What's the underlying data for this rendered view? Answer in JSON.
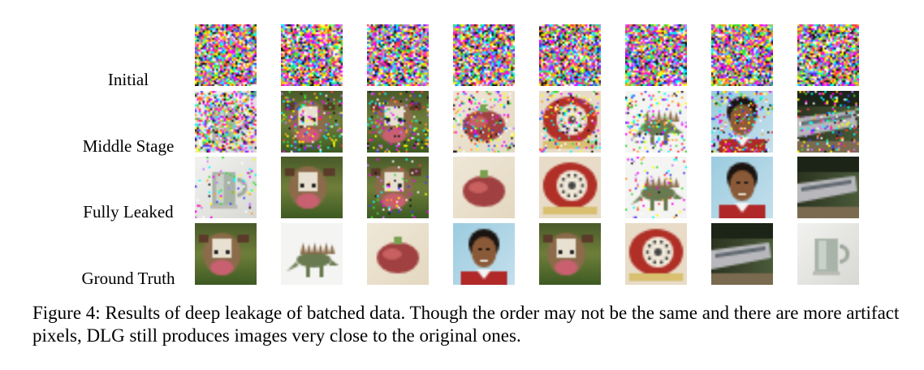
{
  "figure": {
    "rows": [
      {
        "label": "Initial",
        "images": [
          "noise",
          "noise",
          "noise",
          "noise",
          "noise",
          "noise",
          "noise",
          "noise"
        ]
      },
      {
        "label": "Middle Stage",
        "images": [
          "mug",
          "cow",
          "cow",
          "apple",
          "telephone",
          "dinosaur",
          "boy",
          "train"
        ]
      },
      {
        "label": "Fully Leaked",
        "images": [
          "mug",
          "cow",
          "cow",
          "apple",
          "telephone",
          "dinosaur",
          "boy",
          "train"
        ]
      },
      {
        "label": "Ground Truth",
        "images": [
          "cow",
          "dinosaur",
          "apple",
          "boy",
          "cow",
          "telephone",
          "train",
          "mug"
        ]
      }
    ],
    "caption": "Figure 4: Results of deep leakage of batched data. Though the order may not be the same and there are more artifact pixels, DLG still produces images very close to the original ones."
  }
}
